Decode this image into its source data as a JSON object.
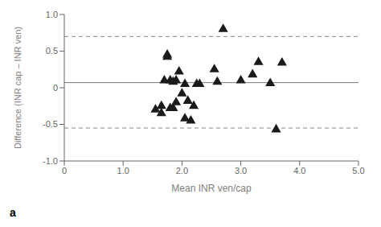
{
  "chart_data": {
    "type": "scatter",
    "xlabel": "Mean INR ven/cap",
    "ylabel": "Difference (INR cap – INR ven)",
    "panel_label": "a",
    "x": [
      1.55,
      1.65,
      1.65,
      1.7,
      1.75,
      1.75,
      1.8,
      1.8,
      1.85,
      1.85,
      1.9,
      1.9,
      1.95,
      2.0,
      2.05,
      2.05,
      2.1,
      2.15,
      2.2,
      2.25,
      2.3,
      2.55,
      2.6,
      2.7,
      3.0,
      3.2,
      3.3,
      3.5,
      3.6,
      3.7
    ],
    "values": [
      -0.3,
      -0.35,
      -0.25,
      0.1,
      0.42,
      0.45,
      0.1,
      -0.28,
      0.08,
      -0.28,
      0.1,
      -0.2,
      0.22,
      -0.08,
      0.05,
      -0.42,
      -0.18,
      -0.45,
      -0.25,
      0.05,
      0.05,
      0.25,
      0.08,
      0.8,
      0.1,
      0.18,
      0.35,
      0.06,
      -0.57,
      0.34
    ],
    "color": "#1a1a1a",
    "marker": "triangle",
    "hlines": [
      {
        "value": 0.07,
        "color": "#777777",
        "line_style": "solid"
      },
      {
        "value": 0.7,
        "color": "#888888",
        "line_style": "dashed"
      },
      {
        "value": -0.55,
        "color": "#888888",
        "line_style": "dashed"
      }
    ],
    "xlim": [
      0,
      5.0
    ],
    "ylim": [
      -1.0,
      1.0
    ],
    "xticks": [
      0,
      {
        "value": 1.0,
        "label": "1.0"
      },
      {
        "value": 2.0,
        "label": "2.0"
      },
      {
        "value": 3.0,
        "label": "3.0"
      },
      {
        "value": 4.0,
        "label": "4.0"
      },
      {
        "value": 5.0,
        "label": "5.0"
      }
    ],
    "yticks": [
      {
        "value": -1.0,
        "label": "-1.0"
      },
      {
        "value": -0.5,
        "label": "-0.5"
      },
      0,
      {
        "value": 0.5,
        "label": "0.5"
      },
      {
        "value": 1.0,
        "label": "1.0"
      }
    ],
    "grid": false
  }
}
